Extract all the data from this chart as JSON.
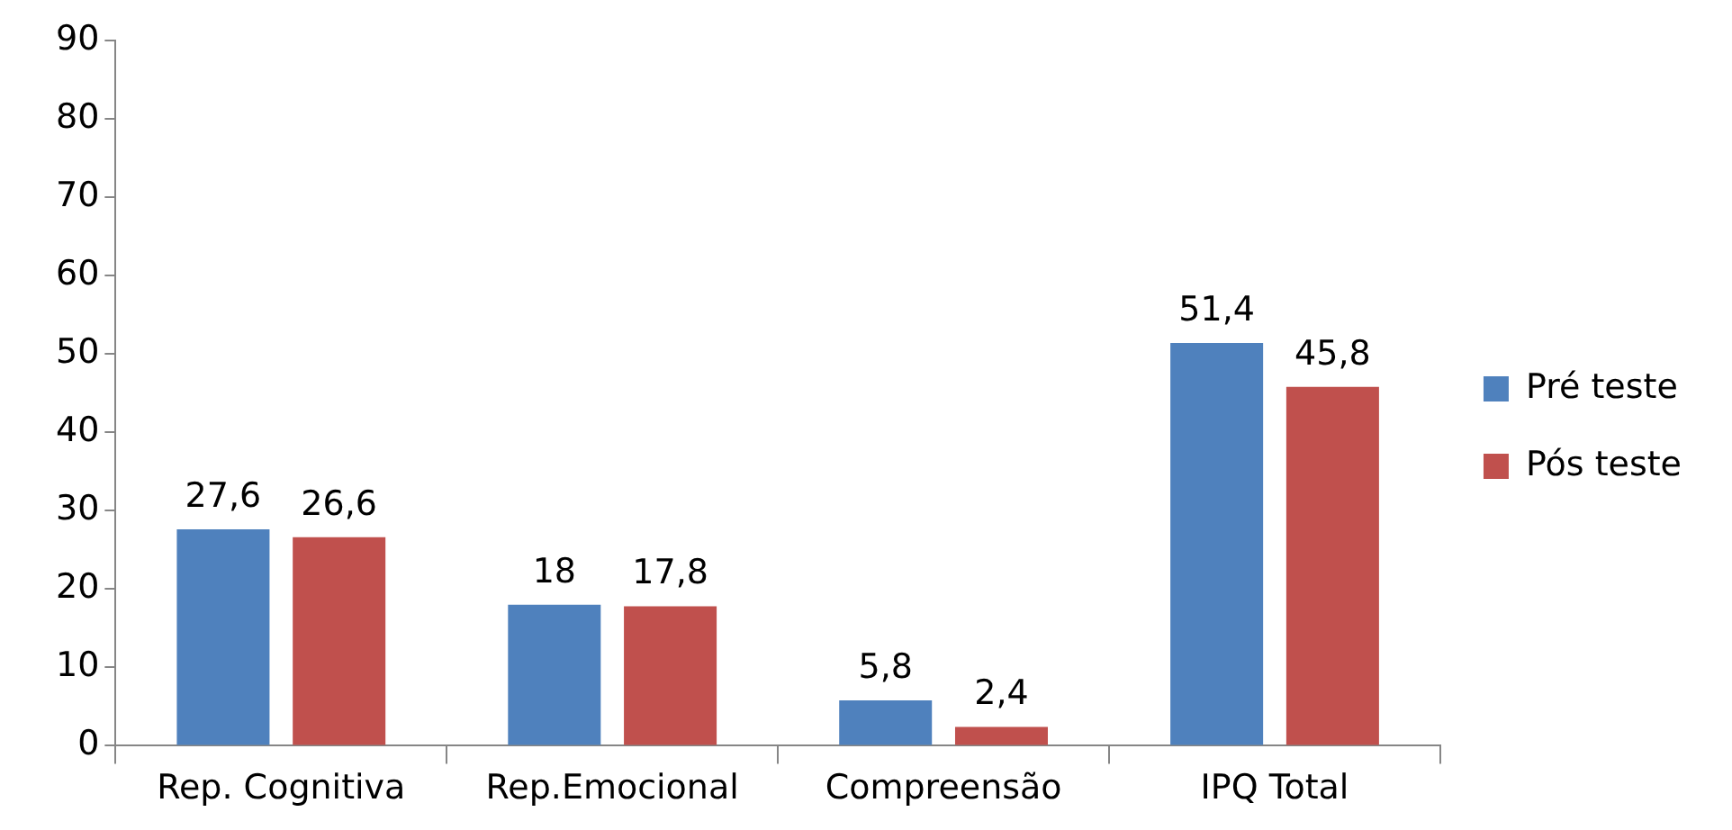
{
  "chart_data": {
    "type": "bar",
    "categories": [
      "Rep. Cognitiva",
      "Rep.Emocional",
      "Compreensão",
      "IPQ Total"
    ],
    "series": [
      {
        "name": "Pré teste",
        "color": "#4f81bd",
        "values": [
          27.6,
          18,
          5.8,
          51.4
        ],
        "value_labels": [
          "27,6",
          "18",
          "5,8",
          "51,4"
        ]
      },
      {
        "name": "Pós teste",
        "color": "#c0504d",
        "values": [
          26.6,
          17.8,
          2.4,
          45.8
        ],
        "value_labels": [
          "26,6",
          "17,8",
          "2,4",
          "45,8"
        ]
      }
    ],
    "ylim": [
      0,
      90
    ],
    "yticks": [
      0,
      10,
      20,
      30,
      40,
      50,
      60,
      70,
      80,
      90
    ],
    "grid": false,
    "legend": "right"
  }
}
